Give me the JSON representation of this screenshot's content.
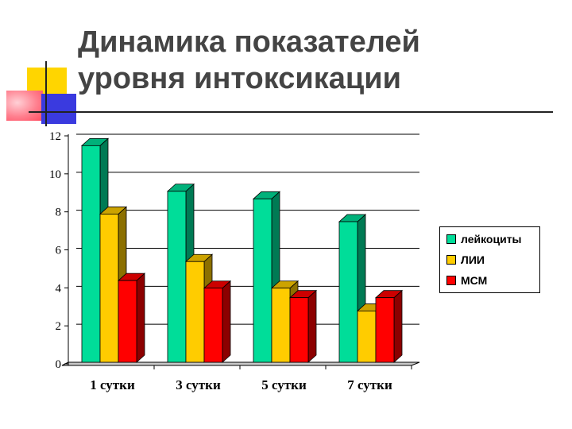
{
  "title": {
    "line1": "Динамика показателей",
    "line2": "уровня интоксикации"
  },
  "chart_data": {
    "type": "bar",
    "title": "Динамика показателей уровня интоксикации",
    "categories": [
      "1 сутки",
      "3 сутки",
      "5 сутки",
      "7 сутки"
    ],
    "series": [
      {
        "name": "лейкоциты",
        "values": [
          11.4,
          9.0,
          8.6,
          7.4
        ],
        "color": "#00dd99"
      },
      {
        "name": "ЛИИ",
        "values": [
          7.8,
          5.3,
          3.9,
          2.7
        ],
        "color": "#ffcc00"
      },
      {
        "name": "МСМ",
        "values": [
          4.3,
          3.9,
          3.4,
          3.4
        ],
        "color": "#ff0000"
      }
    ],
    "ylim": [
      0,
      12
    ],
    "yticks": [
      "0",
      "2",
      "4",
      "6",
      "8",
      "10",
      "12"
    ],
    "grid": true,
    "legend": "right",
    "style": "3d-bars"
  }
}
